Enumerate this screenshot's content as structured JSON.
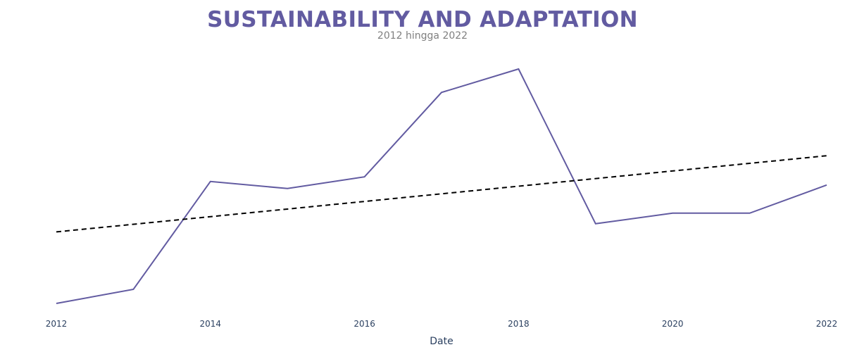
{
  "chart_data": {
    "type": "line",
    "title": "SUSTAINABILITY AND ADAPTATION",
    "subtitle": "2012 hingga 2022",
    "xlabel": "Date",
    "ylabel": "",
    "x": [
      2012,
      2013,
      2014,
      2015,
      2016,
      2017,
      2018,
      2019,
      2020,
      2021,
      2022
    ],
    "x_ticks": [
      "2012",
      "2014",
      "2016",
      "2018",
      "2020",
      "2022"
    ],
    "xlim": [
      2012,
      2022
    ],
    "ylim": [
      0,
      100
    ],
    "y_axis_visible": false,
    "grid": false,
    "series": [
      {
        "role": "data",
        "style": "solid",
        "color": "#625ba1",
        "values": [
          0,
          6,
          52,
          49,
          54,
          90,
          100,
          34,
          38.5,
          38.5,
          50.5
        ]
      },
      {
        "role": "trend",
        "style": "dashed",
        "color": "#000000",
        "start": 30.5,
        "end": 63
      }
    ]
  }
}
